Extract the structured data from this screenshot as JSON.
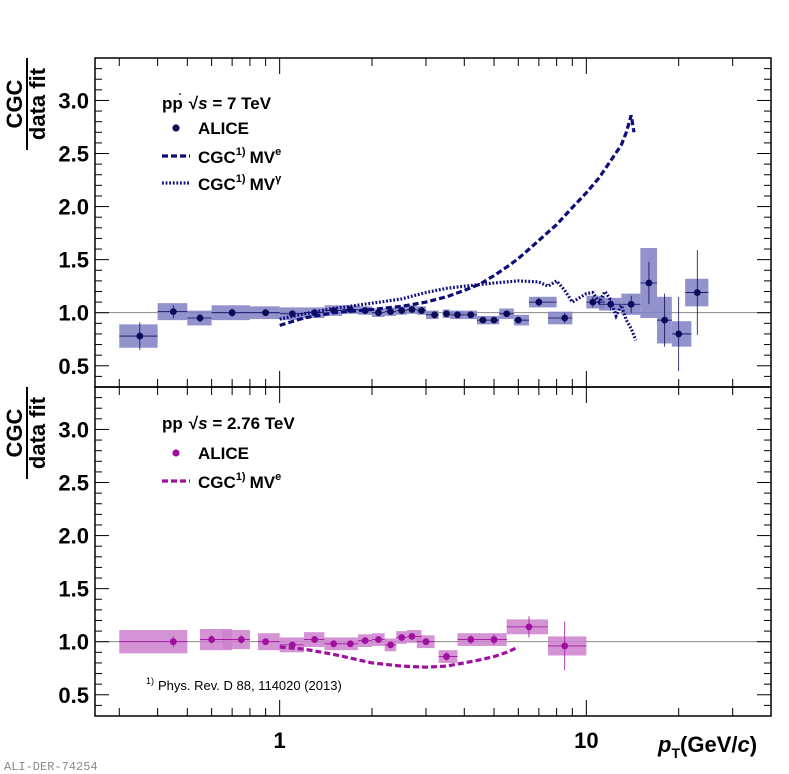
{
  "figure_id": "ALI-DER-74254",
  "x_axis": {
    "label_main": "p",
    "label_sub": "T",
    "label_unit": "(GeV/",
    "label_unit_var": "c",
    "label_unit_close": ")",
    "scale": "log",
    "range": [
      0.25,
      40
    ],
    "labeled_ticks": [
      1,
      10
    ],
    "labeled_tick_text": [
      "1",
      "10"
    ]
  },
  "colors": {
    "top_points": "#0b0b5a",
    "top_boxes": "#7f7fc4",
    "top_cgc": "#0d0d7a",
    "bottom_points": "#a010a0",
    "bottom_boxes": "#cc80cc",
    "bottom_cgc": "#a010a0"
  },
  "reference": {
    "sup": "1)",
    "text": "Phys. Rev. D 88, 114020 (2013)"
  },
  "chart_data": [
    {
      "type": "scatter",
      "name": "top-panel",
      "ylabel_num": "CGC",
      "ylabel_den": "data fit",
      "ylim": [
        0.3,
        3.4
      ],
      "y_ticks": [
        0.5,
        1.0,
        1.5,
        2.0,
        2.5,
        3.0
      ],
      "y_tick_labels": [
        "0.5",
        "1.0",
        "1.5",
        "2.0",
        "2.5",
        "3.0"
      ],
      "reference_line": 1.0,
      "legend": {
        "title_pre": "pp",
        "title_sqrt": "√",
        "title_s": "s",
        "title_post": " = 7 TeV",
        "entries": [
          {
            "label": "ALICE",
            "sup": "",
            "tail": "",
            "tail_sup": ""
          },
          {
            "label": "CGC",
            "sup": "1)",
            "tail": "MV",
            "tail_sup": "e"
          },
          {
            "label": "CGC",
            "sup": "1)",
            "tail": "MV",
            "tail_sup": "γ"
          }
        ]
      },
      "series": [
        {
          "name": "ALICE",
          "style": "points-with-syst-boxes",
          "x": [
            0.35,
            0.45,
            0.55,
            0.7,
            0.9,
            1.1,
            1.3,
            1.5,
            1.7,
            1.9,
            2.1,
            2.3,
            2.5,
            2.7,
            2.9,
            3.2,
            3.5,
            3.8,
            4.2,
            4.6,
            5.0,
            5.5,
            6.0,
            7.0,
            8.5,
            10.5,
            12.0,
            14.0,
            16.0,
            18.0,
            20.0,
            23.0
          ],
          "y": [
            0.78,
            1.01,
            0.95,
            1.0,
            1.0,
            0.99,
            1.0,
            1.02,
            1.03,
            1.02,
            1.0,
            1.01,
            1.02,
            1.03,
            1.02,
            0.98,
            0.99,
            0.98,
            0.98,
            0.93,
            0.93,
            0.99,
            0.93,
            1.1,
            0.95,
            1.1,
            1.08,
            1.08,
            1.28,
            0.93,
            0.8,
            1.19
          ],
          "x_err_low": [
            0.05,
            0.05,
            0.05,
            0.1,
            0.1,
            0.1,
            0.1,
            0.1,
            0.1,
            0.1,
            0.1,
            0.1,
            0.1,
            0.1,
            0.1,
            0.2,
            0.1,
            0.2,
            0.2,
            0.2,
            0.2,
            0.3,
            0.2,
            0.5,
            1.0,
            0.5,
            1.0,
            1.0,
            1.0,
            1.0,
            1.0,
            2.0
          ],
          "x_err_high": [
            0.05,
            0.05,
            0.05,
            0.1,
            0.1,
            0.1,
            0.1,
            0.1,
            0.1,
            0.1,
            0.1,
            0.1,
            0.1,
            0.1,
            0.1,
            0.1,
            0.1,
            0.2,
            0.2,
            0.2,
            0.2,
            0.3,
            0.5,
            1.0,
            0.5,
            1.0,
            1.0,
            1.0,
            1.0,
            1.0,
            2.0,
            2.0
          ],
          "stat_err": [
            0.13,
            0.06,
            0.04,
            0.04,
            0.03,
            0.03,
            0.03,
            0.03,
            0.03,
            0.02,
            0.02,
            0.02,
            0.02,
            0.02,
            0.02,
            0.02,
            0.02,
            0.02,
            0.02,
            0.02,
            0.02,
            0.03,
            0.03,
            0.04,
            0.05,
            0.05,
            0.06,
            0.08,
            0.2,
            0.25,
            0.35,
            0.4
          ],
          "syst_err": [
            0.11,
            0.08,
            0.07,
            0.07,
            0.06,
            0.06,
            0.05,
            0.05,
            0.04,
            0.04,
            0.04,
            0.04,
            0.04,
            0.04,
            0.04,
            0.04,
            0.04,
            0.04,
            0.04,
            0.04,
            0.04,
            0.05,
            0.05,
            0.05,
            0.06,
            0.06,
            0.06,
            0.1,
            0.33,
            0.22,
            0.12,
            0.13
          ]
        },
        {
          "name": "CGC MVe",
          "style": "dashed",
          "x": [
            1.0,
            1.2,
            1.5,
            2.0,
            2.5,
            3.0,
            3.5,
            4.0,
            4.5,
            5.0,
            5.5,
            6.0,
            7.0,
            8.0,
            9.0,
            10.0,
            11.0,
            12.0,
            13.0,
            13.5,
            14.0,
            14.3
          ],
          "y": [
            0.88,
            0.95,
            1.0,
            1.03,
            1.06,
            1.1,
            1.15,
            1.21,
            1.27,
            1.35,
            1.43,
            1.51,
            1.68,
            1.83,
            1.99,
            2.13,
            2.27,
            2.43,
            2.58,
            2.7,
            2.86,
            2.7
          ]
        },
        {
          "name": "CGC MVgamma",
          "style": "dotted",
          "x": [
            1.0,
            1.2,
            1.5,
            2.0,
            2.5,
            3.0,
            3.5,
            4.0,
            5.0,
            6.0,
            7.0,
            7.5,
            8.0,
            8.5,
            9.0,
            10.0,
            10.5,
            11.0,
            11.5,
            12.0,
            12.5,
            13.0,
            13.5,
            14.0,
            14.5
          ],
          "y": [
            0.94,
            0.99,
            1.04,
            1.09,
            1.13,
            1.19,
            1.23,
            1.25,
            1.28,
            1.3,
            1.29,
            1.25,
            1.3,
            1.21,
            1.1,
            1.18,
            1.19,
            1.1,
            1.2,
            1.12,
            0.97,
            1.07,
            0.93,
            0.85,
            0.74
          ]
        }
      ]
    },
    {
      "type": "scatter",
      "name": "bottom-panel",
      "ylabel_num": "CGC",
      "ylabel_den": "data fit",
      "ylim": [
        0.3,
        3.4
      ],
      "y_ticks": [
        0.5,
        1.0,
        1.5,
        2.0,
        2.5,
        3.0
      ],
      "y_tick_labels": [
        "0.5",
        "1.0",
        "1.5",
        "2.0",
        "2.5",
        "3.0"
      ],
      "reference_line": 1.0,
      "legend": {
        "title_pre": "pp",
        "title_sqrt": "√",
        "title_s": "s",
        "title_post": " = 2.76 TeV",
        "entries": [
          {
            "label": "ALICE",
            "sup": "",
            "tail": "",
            "tail_sup": ""
          },
          {
            "label": "CGC",
            "sup": "1)",
            "tail": "MV",
            "tail_sup": "e"
          }
        ]
      },
      "series": [
        {
          "name": "ALICE",
          "style": "points-with-syst-boxes",
          "x": [
            0.45,
            0.6,
            0.75,
            0.9,
            1.1,
            1.3,
            1.5,
            1.7,
            1.9,
            2.1,
            2.3,
            2.5,
            2.7,
            3.0,
            3.5,
            4.2,
            5.0,
            6.5,
            8.5
          ],
          "y": [
            1.0,
            1.02,
            1.02,
            1.0,
            0.97,
            1.02,
            0.98,
            0.98,
            1.01,
            1.02,
            0.97,
            1.04,
            1.05,
            1.0,
            0.86,
            1.02,
            1.02,
            1.14,
            0.96
          ],
          "x_err_low": [
            0.15,
            0.05,
            0.1,
            0.05,
            0.1,
            0.1,
            0.1,
            0.1,
            0.1,
            0.1,
            0.1,
            0.1,
            0.1,
            0.2,
            0.2,
            0.4,
            0.4,
            1.0,
            1.0
          ],
          "x_err_high": [
            0.05,
            0.1,
            0.05,
            0.1,
            0.1,
            0.1,
            0.1,
            0.1,
            0.1,
            0.1,
            0.1,
            0.1,
            0.2,
            0.2,
            0.3,
            0.4,
            0.5,
            1.0,
            1.5
          ],
          "stat_err": [
            0.05,
            0.04,
            0.04,
            0.03,
            0.03,
            0.03,
            0.03,
            0.03,
            0.03,
            0.03,
            0.03,
            0.03,
            0.03,
            0.03,
            0.04,
            0.04,
            0.05,
            0.1,
            0.23
          ],
          "syst_err": [
            0.11,
            0.1,
            0.09,
            0.08,
            0.07,
            0.07,
            0.06,
            0.06,
            0.06,
            0.06,
            0.06,
            0.06,
            0.06,
            0.06,
            0.06,
            0.06,
            0.06,
            0.07,
            0.09
          ]
        },
        {
          "name": "CGC MVe",
          "style": "dashed",
          "x": [
            1.0,
            1.2,
            1.5,
            2.0,
            2.5,
            3.0,
            3.5,
            4.0,
            4.5,
            5.0,
            5.5,
            6.0
          ],
          "y": [
            0.95,
            0.93,
            0.88,
            0.8,
            0.77,
            0.76,
            0.77,
            0.8,
            0.83,
            0.86,
            0.9,
            0.95
          ]
        }
      ]
    }
  ]
}
